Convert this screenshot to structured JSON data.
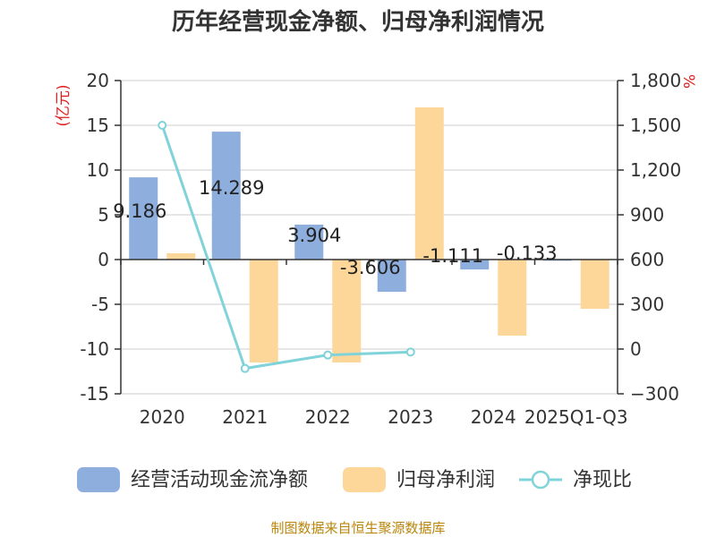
{
  "chart_data": {
    "type": "bar",
    "title": "历年经营现金净额、归母净利润情况",
    "categories": [
      "2020",
      "2021",
      "2022",
      "2023",
      "2024",
      "2025Q1-Q3"
    ],
    "left_axis": {
      "unit": "(亿元)",
      "min": -15,
      "max": 20,
      "ticks": [
        20,
        15,
        10,
        5,
        0,
        -5,
        -10,
        -15
      ]
    },
    "right_axis": {
      "unit": "%",
      "min": -300,
      "max": 1800,
      "ticks": [
        "1,800",
        "1,500",
        "1,200",
        "900",
        "600",
        "300",
        "0",
        "−300"
      ]
    },
    "series": [
      {
        "name": "经营活动现金流净额",
        "kind": "bar",
        "axis": "left",
        "color": "#8eaedd",
        "values": [
          9.186,
          14.289,
          3.904,
          -3.606,
          -1.111,
          -0.133
        ],
        "labels": [
          "9.186",
          "14.289",
          "3.904",
          "-3.606",
          "-1.111",
          "-0.133"
        ]
      },
      {
        "name": "归母净利润",
        "kind": "bar",
        "axis": "left",
        "color": "#fdd79a",
        "values": [
          0.7,
          -11.5,
          -11.5,
          17.0,
          -8.5,
          -5.5
        ]
      },
      {
        "name": "净现比",
        "kind": "line",
        "axis": "right",
        "color": "#7fd3d9",
        "values": [
          1500,
          -130,
          -40,
          -20,
          null,
          null
        ]
      }
    ],
    "source": "制图数据来自恒生聚源数据库"
  }
}
